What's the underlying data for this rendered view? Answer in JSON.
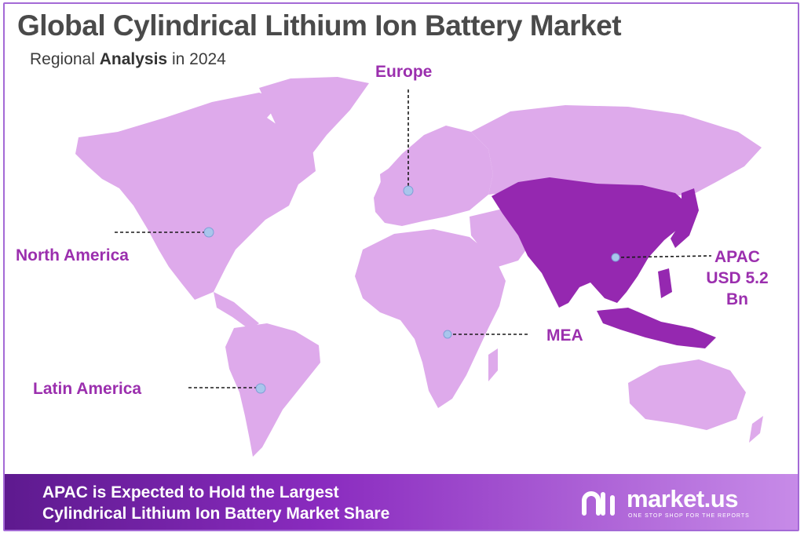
{
  "title": "Global Cylindrical Lithium Ion Battery Market",
  "subtitle": {
    "prefix": "Regional ",
    "bold": "Analysis",
    "suffix": " in 2024"
  },
  "regions": {
    "europe": "Europe",
    "north_america": "North America",
    "apac": {
      "name": "APAC",
      "value_line1": "USD 5.2",
      "value_line2": "Bn"
    },
    "mea": "MEA",
    "latin_america": "Latin America"
  },
  "banner": {
    "line1": "APAC is Expected to Hold the Largest",
    "line2": "Cylindrical Lithium Ion Battery Market Share"
  },
  "brand": {
    "name": "market.us",
    "tagline": "ONE STOP SHOP FOR THE REPORTS"
  },
  "colors": {
    "land": "#deaaeb",
    "highlight": "#9528b0",
    "label": "#9b2fae",
    "title": "#4a4a4a",
    "marker": "#a9c5ec",
    "banner_start": "#5e1a8f",
    "banner_end": "#c78be8"
  }
}
